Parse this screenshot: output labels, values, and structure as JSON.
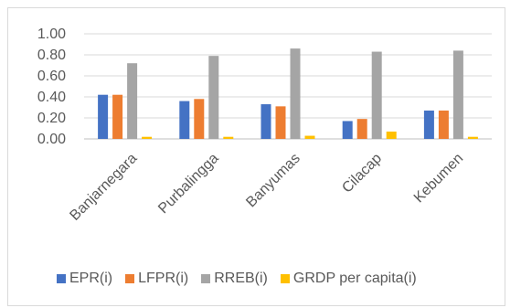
{
  "chart_data": {
    "type": "bar",
    "categories": [
      "Banjarnegara",
      "Purbalingga",
      "Banyumas",
      "Cilacap",
      "Kebumen"
    ],
    "series": [
      {
        "name": "EPR(i)",
        "color": "#4472c4",
        "values": [
          0.42,
          0.36,
          0.33,
          0.17,
          0.27
        ]
      },
      {
        "name": "LFPR(i)",
        "color": "#ed7d31",
        "values": [
          0.42,
          0.38,
          0.31,
          0.19,
          0.27
        ]
      },
      {
        "name": "RREB(i)",
        "color": "#a5a5a5",
        "values": [
          0.72,
          0.79,
          0.86,
          0.83,
          0.84
        ]
      },
      {
        "name": "GRDP per capita(i)",
        "color": "#ffc000",
        "values": [
          0.02,
          0.02,
          0.03,
          0.07,
          0.02
        ]
      }
    ],
    "ylim": [
      0,
      1.0
    ],
    "yticks": [
      "0.00",
      "0.20",
      "0.40",
      "0.60",
      "0.80",
      "1.00"
    ],
    "grid": true,
    "legend_position": "bottom"
  }
}
